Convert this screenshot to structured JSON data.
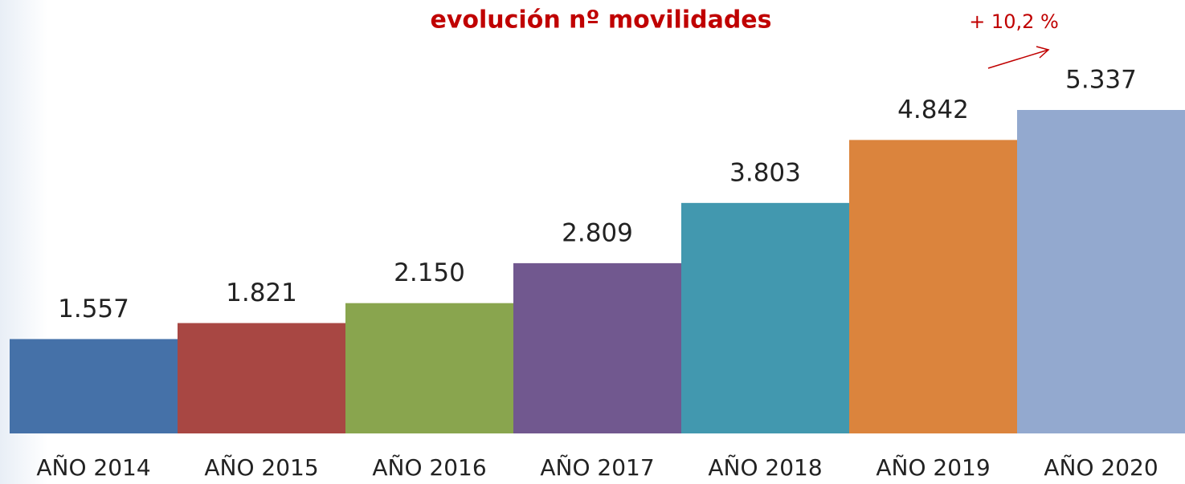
{
  "chart_data": {
    "type": "bar",
    "title": "evolución nº movilidades",
    "annotation": "+ 10,2 %",
    "categories": [
      "AÑO 2014",
      "AÑO 2015",
      "AÑO 2016",
      "AÑO 2017",
      "AÑO 2018",
      "AÑO 2019",
      "AÑO 2020"
    ],
    "values": [
      1557,
      1821,
      2150,
      2809,
      3803,
      4842,
      5337
    ],
    "value_labels": [
      "1.557",
      "1.821",
      "2.150",
      "2.809",
      "3.803",
      "4.842",
      "5.337"
    ],
    "colors": [
      "#4571a8",
      "#a84743",
      "#89a54e",
      "#71588f",
      "#4298af",
      "#db843d",
      "#93a9cf"
    ]
  }
}
